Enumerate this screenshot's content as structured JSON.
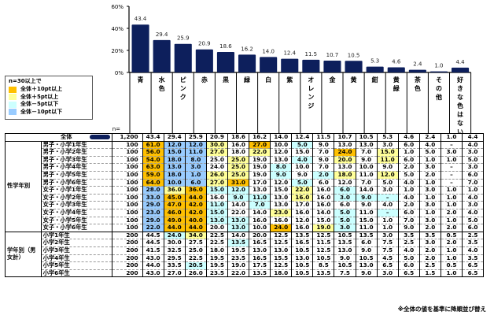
{
  "chart_data": {
    "type": "bar",
    "title": "",
    "xlabel": "",
    "ylabel": "",
    "ylim": [
      0,
      60
    ],
    "yticks": [
      "0%",
      "20%",
      "40%",
      "60%"
    ],
    "n_label": "n=",
    "categories": [
      "青",
      "水色",
      "ピンク",
      "赤",
      "黒",
      "緑",
      "白",
      "紫",
      "オレンジ",
      "金",
      "黄",
      "紺",
      "黄緑",
      "茶色",
      "その他",
      "好きな色はない"
    ],
    "values": [
      43.4,
      29.4,
      25.9,
      20.9,
      18.6,
      16.2,
      14.0,
      12.4,
      11.5,
      10.7,
      10.5,
      5.3,
      4.6,
      2.4,
      1.0,
      4.4
    ],
    "bar_color": "#0d1f5c",
    "grid": false
  },
  "legend": {
    "title": "n=30以上で",
    "items": [
      {
        "label": "全体＋10pt以上",
        "class": "c-hi2",
        "color": "#ffc000"
      },
      {
        "label": "全体＋5pt以上",
        "class": "c-hi1",
        "color": "#ffff99"
      },
      {
        "label": "全体－5pt以下",
        "class": "c-lo1",
        "color": "#ccffff"
      },
      {
        "label": "全体－10pt以下",
        "class": "c-lo2",
        "color": "#99ccff"
      }
    ]
  },
  "table": {
    "total": {
      "label": "全体",
      "n": "1,200",
      "values": [
        "43.4",
        "29.4",
        "25.9",
        "20.9",
        "18.6",
        "16.2",
        "14.0",
        "12.4",
        "11.5",
        "10.7",
        "10.5",
        "5.3",
        "4.6",
        "2.4",
        "1.0",
        "4.4"
      ]
    },
    "groups": [
      {
        "label": "性学年別",
        "rows": [
          {
            "label": "男子・小学1年生",
            "n": "100",
            "values": [
              "61.0",
              "12.0",
              "12.0",
              "30.0",
              "16.0",
              "27.0",
              "10.0",
              "5.0",
              "9.0",
              "13.0",
              "13.0",
              "3.0",
              "6.0",
              "4.0",
              "–",
              "4.0"
            ],
            "hl": [
              "hi2",
              "lo2",
              "lo2",
              "hi1",
              "",
              "hi2",
              "",
              "lo1",
              "",
              "",
              "",
              "",
              "",
              "",
              "",
              ""
            ]
          },
          {
            "label": "男子・小学2年生",
            "n": "100",
            "values": [
              "56.0",
              "15.0",
              "11.0",
              "27.0",
              "18.0",
              "22.0",
              "12.0",
              "15.0",
              "7.0",
              "24.0",
              "7.0",
              "15.0",
              "1.0",
              "5.0",
              "3.0",
              "3.0"
            ],
            "hl": [
              "hi2",
              "lo2",
              "lo2",
              "hi1",
              "",
              "hi1",
              "",
              "",
              "",
              "hi2",
              "",
              "hi1",
              "",
              "",
              "",
              ""
            ]
          },
          {
            "label": "男子・小学3年生",
            "n": "100",
            "values": [
              "54.0",
              "18.0",
              "8.0",
              "25.0",
              "25.0",
              "19.0",
              "13.0",
              "4.0",
              "9.0",
              "20.0",
              "9.0",
              "11.0",
              "6.0",
              "1.0",
              "1.0",
              "5.0"
            ],
            "hl": [
              "hi2",
              "lo2",
              "lo2",
              "",
              "hi1",
              "",
              "",
              "lo1",
              "",
              "hi1",
              "",
              "hi1",
              "",
              "",
              "",
              ""
            ]
          },
          {
            "label": "男子・小学4年生",
            "n": "100",
            "values": [
              "63.0",
              "13.0",
              "3.0",
              "24.0",
              "25.0",
              "19.0",
              "8.0",
              "10.0",
              "7.0",
              "13.0",
              "10.0",
              "9.0",
              "2.0",
              "3.0",
              "–",
              "3.0"
            ],
            "hl": [
              "hi2",
              "lo2",
              "lo2",
              "",
              "hi1",
              "",
              "lo1",
              "",
              "",
              "",
              "",
              "",
              "",
              "",
              "",
              ""
            ]
          },
          {
            "label": "男子・小学5年生",
            "n": "100",
            "values": [
              "59.0",
              "18.0",
              "1.0",
              "26.0",
              "25.0",
              "19.0",
              "9.0",
              "9.0",
              "2.0",
              "18.0",
              "11.0",
              "12.0",
              "5.0",
              "2.0",
              "–",
              "6.0"
            ],
            "hl": [
              "hi2",
              "lo2",
              "lo2",
              "hi1",
              "hi1",
              "",
              "lo1",
              "",
              "lo1",
              "hi1",
              "",
              "hi1",
              "",
              "",
              "",
              ""
            ]
          },
          {
            "label": "男子・小学6年生",
            "n": "100",
            "values": [
              "64.0",
              "10.0",
              "6.0",
              "27.0",
              "31.0",
              "17.0",
              "12.0",
              "5.0",
              "6.0",
              "12.0",
              "7.0",
              "5.0",
              "4.0",
              "1.0",
              "–",
              "7.0"
            ],
            "hl": [
              "hi2",
              "lo2",
              "lo2",
              "hi1",
              "hi2",
              "",
              "",
              "lo1",
              "",
              "",
              "",
              "",
              "",
              "",
              "",
              ""
            ]
          },
          {
            "label": "女子・小学1年生",
            "n": "100",
            "values": [
              "28.0",
              "36.0",
              "36.0",
              "15.0",
              "12.0",
              "13.0",
              "15.0",
              "22.0",
              "16.0",
              "6.0",
              "14.0",
              "3.0",
              "1.0",
              "3.0",
              "1.0",
              "1.0"
            ],
            "hl": [
              "lo2",
              "hi1",
              "hi2",
              "lo1",
              "lo1",
              "",
              "",
              "hi1",
              "",
              "lo1",
              "",
              "",
              "",
              "",
              "",
              ""
            ]
          },
          {
            "label": "女子・小学2年生",
            "n": "100",
            "values": [
              "33.0",
              "45.0",
              "44.0",
              "16.0",
              "9.0",
              "11.0",
              "13.0",
              "16.0",
              "16.0",
              "3.0",
              "9.0",
              "–",
              "4.0",
              "1.0",
              "1.0",
              "4.0"
            ],
            "hl": [
              "lo2",
              "hi2",
              "hi2",
              "",
              "lo1",
              "lo1",
              "",
              "hi1",
              "",
              "lo1",
              "lo1",
              "lo1",
              "",
              "",
              "",
              ""
            ]
          },
          {
            "label": "女子・小学3年生",
            "n": "100",
            "values": [
              "29.0",
              "47.0",
              "42.0",
              "11.0",
              "14.0",
              "7.0",
              "13.0",
              "17.0",
              "16.0",
              "6.0",
              "9.0",
              "4.0",
              "2.0",
              "3.0",
              "1.0",
              "3.0"
            ],
            "hl": [
              "lo2",
              "hi2",
              "hi2",
              "lo1",
              "",
              "lo1",
              "",
              "",
              "",
              "",
              "",
              "",
              "",
              "",
              "",
              ""
            ]
          },
          {
            "label": "女子・小学4年生",
            "n": "100",
            "values": [
              "23.0",
              "46.0",
              "42.0",
              "15.0",
              "22.0",
              "14.0",
              "23.0",
              "16.0",
              "14.0",
              "5.0",
              "11.0",
              "–",
              "6.0",
              "1.0",
              "2.0",
              "4.0"
            ],
            "hl": [
              "lo2",
              "hi2",
              "hi2",
              "lo1",
              "",
              "",
              "hi1",
              "",
              "",
              "lo1",
              "",
              "lo1",
              "",
              "",
              "",
              ""
            ]
          },
          {
            "label": "女子・小学5年生",
            "n": "100",
            "values": [
              "29.0",
              "49.0",
              "40.0",
              "13.0",
              "13.0",
              "16.0",
              "16.0",
              "12.0",
              "15.0",
              "5.0",
              "15.0",
              "1.0",
              "7.0",
              "3.0",
              "1.0",
              "5.0"
            ],
            "hl": [
              "lo2",
              "hi2",
              "hi2",
              "lo1",
              "lo1",
              "",
              "",
              "",
              "",
              "lo1",
              "",
              "",
              "",
              "",
              "",
              ""
            ]
          },
          {
            "label": "女子・小学6年生",
            "n": "100",
            "values": [
              "22.0",
              "44.0",
              "44.0",
              "20.0",
              "13.0",
              "10.0",
              "24.0",
              "16.0",
              "19.0",
              "3.0",
              "11.0",
              "1.0",
              "9.0",
              "2.0",
              "2.0",
              "6.0"
            ],
            "hl": [
              "lo2",
              "hi2",
              "hi2",
              "",
              "lo1",
              "",
              "hi2",
              "",
              "hi1",
              "lo1",
              "",
              "",
              "",
              "",
              "",
              ""
            ]
          }
        ]
      },
      {
        "label": "学年別（男女計）",
        "rows": [
          {
            "label": "小学1年生",
            "n": "200",
            "values": [
              "44.5",
              "24.0",
              "34.0",
              "22.5",
              "14.0",
              "20.0",
              "12.5",
              "13.5",
              "12.5",
              "10.5",
              "13.5",
              "3.0",
              "3.5",
              "3.5",
              "0.5",
              "2.5"
            ],
            "hl": [
              "",
              "lo1",
              "hi1",
              "",
              "",
              "",
              "",
              "",
              "",
              "",
              "",
              "",
              "",
              "",
              "",
              ""
            ]
          },
          {
            "label": "小学2年生",
            "n": "200",
            "values": [
              "44.5",
              "30.0",
              "27.5",
              "22.5",
              "13.5",
              "16.5",
              "12.5",
              "16.5",
              "11.5",
              "13.5",
              "6.0",
              "7.5",
              "2.5",
              "3.0",
              "2.0",
              "3.5"
            ],
            "hl": [
              "",
              "",
              "",
              "",
              "lo1",
              "",
              "",
              "",
              "",
              "",
              "",
              "",
              "",
              "",
              "",
              ""
            ]
          },
          {
            "label": "小学3年生",
            "n": "200",
            "values": [
              "41.5",
              "32.5",
              "25.0",
              "18.0",
              "19.5",
              "13.0",
              "13.0",
              "10.5",
              "12.5",
              "13.0",
              "9.0",
              "7.5",
              "4.0",
              "2.0",
              "1.0",
              "4.0"
            ],
            "hl": [
              "",
              "",
              "",
              "",
              "",
              "",
              "",
              "",
              "",
              "",
              "",
              "",
              "",
              "",
              "",
              ""
            ]
          },
          {
            "label": "小学4年生",
            "n": "200",
            "values": [
              "43.0",
              "29.5",
              "22.5",
              "19.5",
              "23.5",
              "16.5",
              "15.5",
              "13.0",
              "10.5",
              "9.0",
              "10.5",
              "4.5",
              "5.0",
              "2.0",
              "1.0",
              "3.5"
            ],
            "hl": [
              "",
              "",
              "",
              "",
              "",
              "",
              "",
              "",
              "",
              "",
              "",
              "",
              "",
              "",
              "",
              ""
            ]
          },
          {
            "label": "小学5年生",
            "n": "200",
            "values": [
              "44.0",
              "33.5",
              "20.5",
              "19.5",
              "19.0",
              "17.5",
              "12.5",
              "10.5",
              "8.5",
              "10.5",
              "13.0",
              "6.5",
              "6.0",
              "2.5",
              "0.5",
              "6.5"
            ],
            "hl": [
              "",
              "",
              "lo1",
              "",
              "",
              "",
              "",
              "",
              "",
              "",
              "",
              "",
              "",
              "",
              "",
              ""
            ]
          },
          {
            "label": "小学6年生",
            "n": "200",
            "values": [
              "43.0",
              "27.0",
              "26.0",
              "23.5",
              "22.0",
              "13.5",
              "18.0",
              "10.5",
              "13.5",
              "7.5",
              "9.0",
              "3.0",
              "6.5",
              "1.5",
              "1.0",
              "6.5"
            ],
            "hl": [
              "",
              "",
              "",
              "",
              "",
              "",
              "",
              "",
              "",
              "",
              "",
              "",
              "",
              "",
              "",
              ""
            ]
          }
        ]
      }
    ]
  },
  "note": "※全体の値を基準に降順並び替え"
}
